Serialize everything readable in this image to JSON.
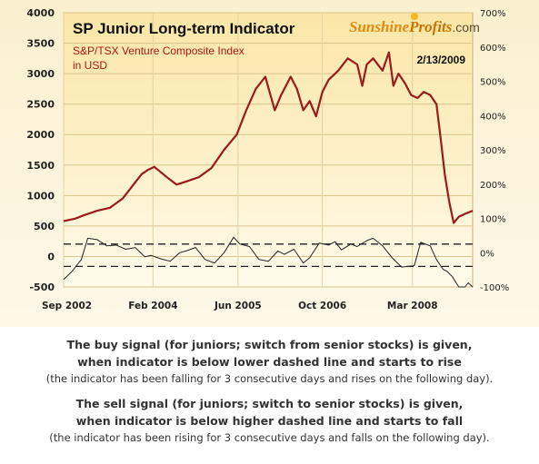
{
  "chart_data": {
    "type": "line",
    "title": "SP Junior Long-term Indicator",
    "subtitle_line1": "S&P/TSX Venture Composite Index",
    "subtitle_line2": "in USD",
    "date": "2/13/2009",
    "brand": {
      "part1": "Sunshine",
      "part2": "Profits",
      "suffix": ".com"
    },
    "ylim_left": [
      -500,
      4000
    ],
    "ylim_right": [
      -100,
      700
    ],
    "y_ticks_left": [
      "4000",
      "3500",
      "3000",
      "2500",
      "2000",
      "1500",
      "1000",
      "500",
      "0",
      "-500"
    ],
    "y_ticks_right": [
      "700%",
      "600%",
      "500%",
      "400%",
      "300%",
      "200%",
      "100%",
      "0%",
      "-100%"
    ],
    "x_ticks": [
      "Sep 2002",
      "Feb 2004",
      "Jun 2005",
      "Oct 2006",
      "Mar 2008"
    ],
    "x_tick_values": [
      2002.67,
      2004.08,
      2005.42,
      2006.75,
      2008.17
    ],
    "xlim": [
      2002.67,
      2009.12
    ],
    "grid": true,
    "series": [
      {
        "values_axis": "left",
        "x": [
          2002.67,
          2002.85,
          2003.0,
          2003.2,
          2003.4,
          2003.6,
          2003.75,
          2003.9,
          2004.0,
          2004.1,
          2004.3,
          2004.45,
          2004.6,
          2004.8,
          2005.0,
          2005.2,
          2005.4,
          2005.55,
          2005.7,
          2005.85,
          2006.0,
          2006.1,
          2006.25,
          2006.35,
          2006.45,
          2006.55,
          2006.65,
          2006.75,
          2006.85,
          2007.0,
          2007.15,
          2007.3,
          2007.38,
          2007.45,
          2007.55,
          2007.7,
          2007.8,
          2007.87,
          2007.95,
          2008.05,
          2008.15,
          2008.25,
          2008.35,
          2008.45,
          2008.55,
          2008.62,
          2008.68,
          2008.75,
          2008.82,
          2008.9,
          2009.0,
          2009.12
        ],
        "values": [
          580,
          620,
          680,
          750,
          800,
          950,
          1150,
          1350,
          1420,
          1470,
          1300,
          1180,
          1230,
          1300,
          1450,
          1750,
          2000,
          2400,
          2750,
          2950,
          2400,
          2650,
          2950,
          2750,
          2400,
          2550,
          2300,
          2700,
          2900,
          3050,
          3250,
          3150,
          2800,
          3150,
          3250,
          3050,
          3350,
          2800,
          3000,
          2850,
          2650,
          2600,
          2700,
          2650,
          2500,
          1900,
          1350,
          900,
          550,
          650,
          700,
          750
        ]
      },
      {
        "values_axis": "right",
        "x": [
          2002.67,
          2002.8,
          2002.95,
          2003.05,
          2003.2,
          2003.35,
          2003.5,
          2003.65,
          2003.8,
          2003.95,
          2004.05,
          2004.2,
          2004.35,
          2004.5,
          2004.6,
          2004.75,
          2004.9,
          2005.05,
          2005.2,
          2005.35,
          2005.45,
          2005.6,
          2005.75,
          2005.9,
          2006.05,
          2006.15,
          2006.3,
          2006.45,
          2006.55,
          2006.7,
          2006.85,
          2006.95,
          2007.05,
          2007.2,
          2007.3,
          2007.45,
          2007.55,
          2007.7,
          2007.85,
          2008.0,
          2008.1,
          2008.2,
          2008.3,
          2008.45,
          2008.55,
          2008.65,
          2008.72,
          2008.8,
          2008.9,
          2009.0,
          2009.05,
          2009.12
        ],
        "values": [
          -78,
          -55,
          -20,
          42,
          38,
          20,
          22,
          10,
          15,
          -12,
          -8,
          -18,
          -25,
          0,
          5,
          15,
          -20,
          -30,
          0,
          45,
          25,
          18,
          -20,
          -25,
          5,
          -5,
          10,
          -30,
          -15,
          28,
          22,
          32,
          8,
          25,
          18,
          35,
          42,
          20,
          -15,
          -42,
          -40,
          -38,
          30,
          20,
          -20,
          -48,
          -55,
          -70,
          -100,
          -100,
          -88,
          -100
        ]
      }
    ],
    "thresholds_percent": [
      25,
      -40
    ]
  },
  "caption": {
    "buy_line1": "The buy signal (for juniors; switch from senior stocks) is given,",
    "buy_line2": "when indicator is below lower dashed line and starts to rise",
    "buy_line3": "(the indicator has been falling for 3 consecutive days and rises on the following day).",
    "sell_line1": "The sell signal (for juniors; switch to senior stocks) is given,",
    "sell_line2": "when indicator is below higher dashed line and starts to fall",
    "sell_line3": "(the indicator has been rising for 3 consecutive days and falls on the following day)."
  },
  "colors": {
    "index_line": "#9b1b1b",
    "indicator_line": "#222222",
    "subtitle": "#b01818",
    "plot_bg_top": "#fbe6a6",
    "plot_bg_bottom": "#fffbea",
    "brand_orange": "#e38a10"
  }
}
